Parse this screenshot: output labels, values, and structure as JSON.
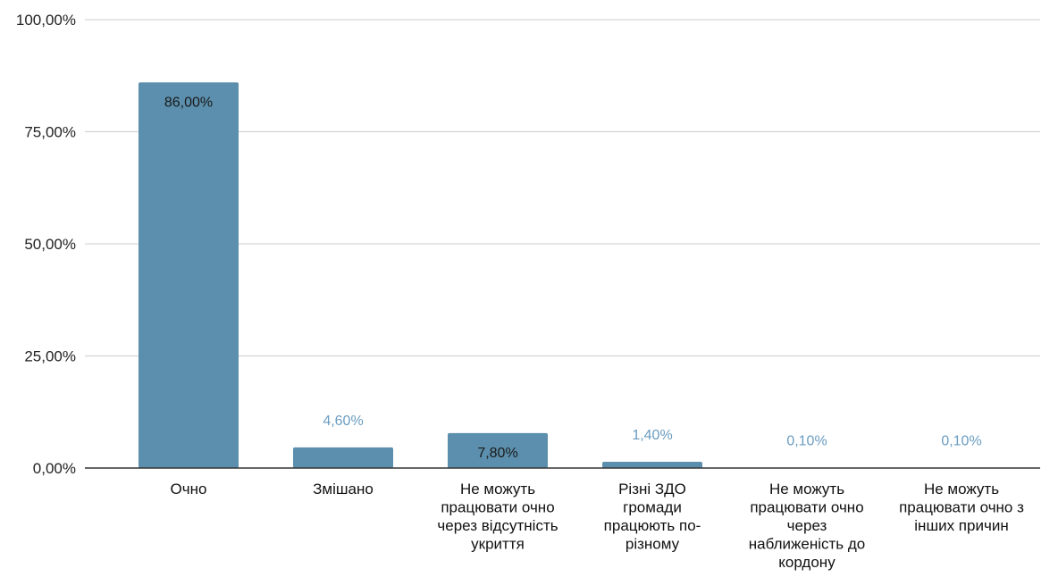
{
  "chart_data": {
    "type": "bar",
    "categories": [
      [
        "Очно"
      ],
      [
        "Змішано"
      ],
      [
        "Не можуть",
        "працювати очно",
        "через відсутність",
        "укриття"
      ],
      [
        "Різні ЗДО",
        "громади",
        "працюють по-",
        "різному"
      ],
      [
        "Не можуть",
        "працювати очно",
        "через",
        "наближеність до",
        "кордону"
      ],
      [
        "Не можуть",
        "працювати очно з",
        "інших причин"
      ]
    ],
    "values": [
      86.0,
      4.6,
      7.8,
      1.4,
      0.1,
      0.1
    ],
    "value_labels": [
      "86,00%",
      "4,60%",
      "7,80%",
      "1,40%",
      "0,10%",
      "0,10%"
    ],
    "label_inside": [
      true,
      false,
      true,
      false,
      false,
      false
    ],
    "ylim": [
      0,
      100
    ],
    "yticks": [
      0,
      25,
      50,
      75,
      100
    ],
    "ytick_labels": [
      "0,00%",
      "25,00%",
      "50,00%",
      "75,00%",
      "100,00%"
    ],
    "title": "",
    "xlabel": "",
    "ylabel": "",
    "grid": true,
    "legend": "none",
    "colors": {
      "bar": "#5b8fad",
      "label_outside": "#6a9cc0",
      "label_inside": "#1a1a1a",
      "grid": "#cccccc",
      "axis": "#333333"
    }
  }
}
